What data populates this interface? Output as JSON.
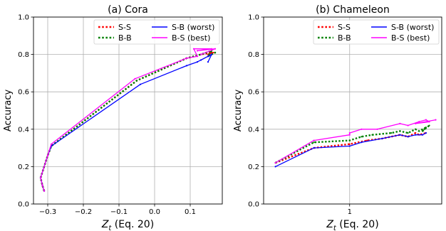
{
  "chart_data": [
    {
      "type": "line",
      "title": "(a) Cora",
      "xlabel": "Z_t (Eq. 20)",
      "ylabel": "Accuracy",
      "xlim": [
        -0.34,
        0.19
      ],
      "ylim": [
        0.0,
        1.0
      ],
      "xticks": [
        -0.3,
        -0.2,
        -0.1,
        0.0,
        0.1
      ],
      "xtick_labels": [
        "−0.3",
        "−0.2",
        "−0.1",
        "0.0",
        "0.1"
      ],
      "yticks": [
        0.0,
        0.2,
        0.4,
        0.6,
        0.8,
        1.0
      ],
      "ytick_labels": [
        "0.0",
        "0.2",
        "0.4",
        "0.6",
        "0.8",
        "1.0"
      ],
      "grid": true,
      "legend": "top-right",
      "series": [
        {
          "name": "S-S",
          "color": "#ff0000",
          "style": "dotted",
          "x": [
            -0.31,
            -0.315,
            -0.32,
            -0.3,
            -0.29,
            -0.05,
            0.09,
            0.13,
            0.16,
            0.15,
            0.165
          ],
          "y": [
            0.07,
            0.1,
            0.14,
            0.26,
            0.31,
            0.66,
            0.78,
            0.8,
            0.81,
            0.8,
            0.81
          ]
        },
        {
          "name": "B-B",
          "color": "#008000",
          "style": "dotted",
          "x": [
            -0.31,
            -0.315,
            -0.32,
            -0.3,
            -0.29,
            -0.05,
            0.09,
            0.13,
            0.16,
            0.15,
            0.17,
            0.16
          ],
          "y": [
            0.07,
            0.1,
            0.14,
            0.26,
            0.31,
            0.66,
            0.78,
            0.8,
            0.82,
            0.79,
            0.81,
            0.8
          ]
        },
        {
          "name": "S-B (worst)",
          "color": "#0000ff",
          "style": "solid",
          "x": [
            -0.31,
            -0.315,
            -0.32,
            -0.3,
            -0.29,
            -0.04,
            0.09,
            0.12,
            0.15,
            0.13,
            0.16,
            0.15
          ],
          "y": [
            0.07,
            0.1,
            0.14,
            0.26,
            0.31,
            0.64,
            0.74,
            0.76,
            0.79,
            0.77,
            0.8,
            0.76
          ]
        },
        {
          "name": "B-S (best)",
          "color": "#ff00ff",
          "style": "solid",
          "x": [
            -0.31,
            -0.315,
            -0.32,
            -0.3,
            -0.29,
            -0.055,
            0.09,
            0.12,
            0.11,
            0.16,
            0.12,
            0.17,
            0.13
          ],
          "y": [
            0.07,
            0.1,
            0.14,
            0.26,
            0.32,
            0.67,
            0.78,
            0.79,
            0.83,
            0.83,
            0.82,
            0.83,
            0.8
          ]
        }
      ]
    },
    {
      "type": "line",
      "title": "(b) Chameleon",
      "xlabel": "Z_t (Eq. 20)",
      "ylabel": "Accuracy",
      "xscale": "log",
      "xlim": [
        0.5,
        2.1
      ],
      "ylim": [
        0.0,
        1.0
      ],
      "xticks": [
        1
      ],
      "xtick_labels": [
        "1"
      ],
      "yticks": [
        0.0,
        0.2,
        0.4,
        0.6,
        0.8,
        1.0
      ],
      "ytick_labels": [
        "0.0",
        "0.2",
        "0.4",
        "0.6",
        "0.8",
        "1.0"
      ],
      "grid": true,
      "legend": "top-right",
      "series": [
        {
          "name": "S-S",
          "color": "#ff0000",
          "style": "dotted",
          "x": [
            0.55,
            0.75,
            1.0,
            1.15,
            1.3,
            1.5,
            1.6,
            1.7,
            1.75,
            1.85
          ],
          "y": [
            0.22,
            0.3,
            0.32,
            0.34,
            0.35,
            0.37,
            0.36,
            0.38,
            0.37,
            0.38
          ]
        },
        {
          "name": "B-B",
          "color": "#008000",
          "style": "dotted",
          "x": [
            0.55,
            0.75,
            1.0,
            1.1,
            1.2,
            1.4,
            1.5,
            1.6,
            1.7,
            1.75,
            1.85,
            1.8,
            1.9
          ],
          "y": [
            0.22,
            0.33,
            0.34,
            0.36,
            0.37,
            0.38,
            0.39,
            0.38,
            0.4,
            0.39,
            0.41,
            0.39,
            0.42
          ]
        },
        {
          "name": "S-B (worst)",
          "color": "#0000ff",
          "style": "solid",
          "x": [
            0.55,
            0.75,
            1.0,
            1.1,
            1.3,
            1.5,
            1.6,
            1.7,
            1.8,
            1.85
          ],
          "y": [
            0.2,
            0.3,
            0.31,
            0.33,
            0.35,
            0.37,
            0.36,
            0.37,
            0.37,
            0.38
          ]
        },
        {
          "name": "B-S (best)",
          "color": "#ff00ff",
          "style": "solid",
          "x": [
            0.55,
            0.75,
            1.0,
            1.0,
            1.1,
            1.25,
            1.5,
            1.6,
            1.75,
            1.85,
            1.9,
            1.7,
            2.0
          ],
          "y": [
            0.22,
            0.34,
            0.37,
            0.38,
            0.4,
            0.4,
            0.43,
            0.42,
            0.44,
            0.45,
            0.44,
            0.43,
            0.45
          ]
        }
      ]
    }
  ]
}
